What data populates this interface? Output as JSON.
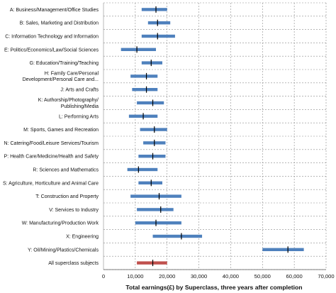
{
  "chart_data": {
    "type": "range-bar",
    "xlabel": "Total earnings(£) by Superclass, three years after completion",
    "xlim": [
      0,
      70000
    ],
    "x_ticks": [
      0,
      10000,
      20000,
      30000,
      40000,
      50000,
      60000,
      70000
    ],
    "x_tick_labels": [
      "0",
      "10,000",
      "20,000",
      "30,000",
      "40,000",
      "50,000",
      "60,000",
      "70,000"
    ],
    "grid": true,
    "categories": [
      {
        "label": "A: Business/Management/Office Studies",
        "low": 12000,
        "high": 20000,
        "median": 16500
      },
      {
        "label": "B: Sales, Marketing and Distribution",
        "low": 14000,
        "high": 21000,
        "median": 17000
      },
      {
        "label": "C: Information Technology and Information",
        "low": 12000,
        "high": 22500,
        "median": 17000
      },
      {
        "label": "E: Politics/Economics/Law/Social Sciences",
        "low": 5500,
        "high": 16500,
        "median": 10500
      },
      {
        "label": "G: Education/Training/Teaching",
        "low": 12000,
        "high": 18500,
        "median": 15000
      },
      {
        "label": "H: Family Care/Personal Development/Personal Care and...",
        "lines": [
          "H: Family Care/Personal",
          "Development/Personal Care and..."
        ],
        "low": 8500,
        "high": 17000,
        "median": 13500
      },
      {
        "label": "J: Arts and Crafts",
        "low": 9000,
        "high": 17000,
        "median": 13500
      },
      {
        "label": "K: Authorship/Photography/ Publishing/Media",
        "lines": [
          "K: Authorship/Photography/",
          "Publishing/Media"
        ],
        "low": 10500,
        "high": 19000,
        "median": 15500
      },
      {
        "label": "L: Performing Arts",
        "low": 8000,
        "high": 17000,
        "median": 12500
      },
      {
        "label": "M: Sports, Games and Recreation",
        "low": 11500,
        "high": 20000,
        "median": 16000
      },
      {
        "label": "N: Catering/Food/Leisure Services/Tourism",
        "low": 12500,
        "high": 19500,
        "median": 16000
      },
      {
        "label": "P: Health Care/Medicine/Health and Safety",
        "low": 11000,
        "high": 19500,
        "median": 15500
      },
      {
        "label": "R: Sciences and Mathematics",
        "low": 7500,
        "high": 17000,
        "median": 11000
      },
      {
        "label": "S: Agriculture, Horticulture and Animal Care",
        "low": 11000,
        "high": 18500,
        "median": 15000
      },
      {
        "label": "T: Construction and Property",
        "low": 8500,
        "high": 24500,
        "median": 17500
      },
      {
        "label": "V: Services to Industry",
        "low": 10500,
        "high": 22000,
        "median": 18000
      },
      {
        "label": "W: Manufacturing/Production Work",
        "low": 10000,
        "high": 24500,
        "median": 16500
      },
      {
        "label": "X: Engineering",
        "low": 15500,
        "high": 31000,
        "median": 24500
      },
      {
        "label": "Y: Oil/Mining/Plastics/Chemicals",
        "low": 50000,
        "high": 63000,
        "median": 58000
      },
      {
        "label": "All superclass subjects",
        "low": 10500,
        "high": 20000,
        "median": 15500
      }
    ],
    "colors": {
      "bar": "#4f81bd",
      "bar_overall": "#c0504d",
      "median": "#000000",
      "grid": "#8c8c8c"
    }
  }
}
